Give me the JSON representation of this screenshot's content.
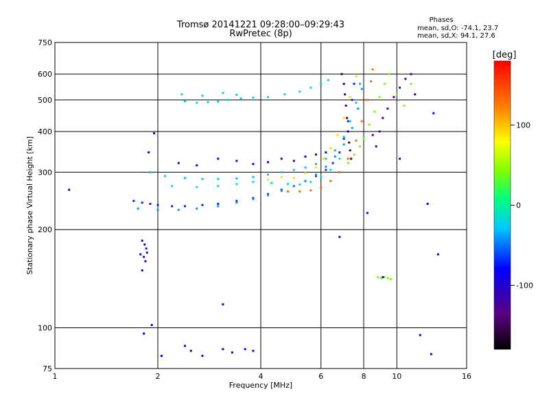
{
  "chart_data": {
    "type": "scatter",
    "title": "Tromsø 20141221 09:28:00–09:29:43",
    "subtitle": "RwPretec (8p)",
    "xlabel": "Frequency [MHz]",
    "ylabel": "Stationary phase Virtual Height [km]",
    "x_scale": "log",
    "y_scale": "log",
    "xlim": [
      1,
      16
    ],
    "ylim": [
      75,
      750
    ],
    "x_ticks": [
      1,
      2,
      4,
      6,
      8,
      10,
      16
    ],
    "y_ticks": [
      75,
      100,
      200,
      300,
      400,
      500,
      600,
      750
    ],
    "x_tick_labels": [
      "1",
      "2",
      "4",
      "6",
      "8",
      "10",
      "16"
    ],
    "y_tick_labels": [
      "75",
      "100",
      "200",
      "300",
      "400",
      "500",
      "600",
      "750"
    ],
    "grid": true,
    "stats": {
      "header": "Phases",
      "line_o": "mean, sd,O: -74.1, 23.7",
      "line_x": "mean, sd,X:  94.1, 27.6"
    },
    "colorbar": {
      "label": "[deg]",
      "range": [
        -180,
        180
      ],
      "ticks": [
        100,
        0,
        -100
      ],
      "tick_labels": [
        "100",
        "0",
        "-100"
      ]
    },
    "series": [
      {
        "values": [
          [
            2.4,
            495
          ],
          [
            2.6,
            490
          ],
          [
            2.8,
            492
          ],
          [
            3.0,
            494
          ],
          [
            3.2,
            500
          ],
          [
            3.5,
            505
          ],
          [
            3.8,
            508
          ],
          [
            4.2,
            510
          ],
          [
            4.7,
            520
          ],
          [
            5.2,
            530
          ],
          [
            5.6,
            545
          ],
          [
            6.0,
            560
          ],
          [
            6.3,
            575
          ],
          [
            2.35,
            520
          ],
          [
            2.7,
            515
          ],
          [
            3.1,
            525
          ],
          [
            3.4,
            518
          ]
        ],
        "phase": -20
      },
      {
        "values": [
          [
            1.7,
            245
          ],
          [
            1.8,
            242
          ],
          [
            1.9,
            240
          ],
          [
            2.0,
            238
          ],
          [
            2.2,
            236
          ],
          [
            2.4,
            236
          ],
          [
            2.7,
            238
          ],
          [
            3.0,
            240
          ],
          [
            3.4,
            245
          ],
          [
            3.8,
            250
          ],
          [
            4.2,
            257
          ],
          [
            4.6,
            265
          ],
          [
            5.0,
            272
          ],
          [
            5.4,
            282
          ],
          [
            5.8,
            292
          ],
          [
            6.2,
            305
          ],
          [
            6.5,
            320
          ],
          [
            6.8,
            345
          ],
          [
            7.0,
            380
          ],
          [
            7.2,
            430
          ],
          [
            7.4,
            500
          ],
          [
            7.5,
            560
          ]
        ],
        "phase": -70
      },
      {
        "values": [
          [
            1.75,
            232
          ],
          [
            2.0,
            230
          ],
          [
            2.3,
            230
          ],
          [
            2.6,
            232
          ],
          [
            3.0,
            236
          ],
          [
            3.4,
            242
          ],
          [
            3.8,
            248
          ],
          [
            4.2,
            255
          ],
          [
            4.6,
            263
          ],
          [
            5.0,
            272
          ],
          [
            5.4,
            282
          ],
          [
            5.8,
            295
          ],
          [
            6.2,
            312
          ],
          [
            6.6,
            335
          ],
          [
            7.0,
            365
          ],
          [
            7.4,
            410
          ],
          [
            7.7,
            470
          ],
          [
            7.9,
            540
          ]
        ],
        "phase": -40
      },
      {
        "values": [
          [
            1.9,
            300
          ],
          [
            2.1,
            292
          ],
          [
            2.4,
            288
          ],
          [
            2.7,
            286
          ],
          [
            3.0,
            286
          ],
          [
            3.4,
            287
          ],
          [
            3.8,
            290
          ],
          [
            4.2,
            295
          ],
          [
            4.6,
            300
          ],
          [
            5.0,
            305
          ],
          [
            5.4,
            310
          ],
          [
            5.8,
            318
          ],
          [
            6.2,
            330
          ],
          [
            6.6,
            350
          ],
          [
            7.0,
            385
          ],
          [
            7.3,
            430
          ],
          [
            7.6,
            490
          ],
          [
            7.8,
            560
          ]
        ],
        "phase": -30
      },
      {
        "values": [
          [
            2.2,
            272
          ],
          [
            2.6,
            270
          ],
          [
            3.0,
            272
          ],
          [
            3.4,
            276
          ],
          [
            3.8,
            280
          ],
          [
            4.3,
            278
          ],
          [
            4.8,
            276
          ],
          [
            5.2,
            275
          ],
          [
            5.6,
            280
          ],
          [
            6.0,
            290
          ],
          [
            6.4,
            305
          ],
          [
            6.8,
            330
          ]
        ],
        "phase": -10
      },
      {
        "values": [
          [
            2.3,
            320
          ],
          [
            2.6,
            315
          ],
          [
            3.0,
            330
          ],
          [
            3.4,
            325
          ],
          [
            3.8,
            318
          ],
          [
            4.2,
            322
          ],
          [
            4.6,
            330
          ],
          [
            5.0,
            325
          ],
          [
            5.4,
            335
          ],
          [
            5.8,
            340
          ],
          [
            6.2,
            345
          ]
        ],
        "phase": -90
      },
      {
        "values": [
          [
            4.2,
            285
          ],
          [
            4.6,
            290
          ],
          [
            5.0,
            288
          ],
          [
            5.4,
            298
          ],
          [
            5.8,
            310
          ],
          [
            6.1,
            330
          ],
          [
            6.4,
            355
          ],
          [
            6.7,
            390
          ],
          [
            7.0,
            440
          ],
          [
            7.3,
            510
          ],
          [
            7.6,
            590
          ]
        ],
        "phase": 90
      },
      {
        "values": [
          [
            4.8,
            262
          ],
          [
            5.2,
            262
          ],
          [
            5.6,
            264
          ],
          [
            6.0,
            270
          ],
          [
            6.4,
            282
          ],
          [
            6.8,
            300
          ],
          [
            7.2,
            330
          ],
          [
            7.6,
            375
          ],
          [
            7.9,
            430
          ],
          [
            8.2,
            500
          ],
          [
            8.4,
            570
          ],
          [
            8.5,
            620
          ]
        ],
        "phase": 130
      },
      {
        "values": [
          [
            7.2,
            320
          ],
          [
            7.5,
            340
          ],
          [
            7.8,
            360
          ],
          [
            8.0,
            380
          ],
          [
            8.3,
            420
          ],
          [
            8.6,
            460
          ],
          [
            8.9,
            510
          ],
          [
            9.2,
            560
          ],
          [
            9.5,
            600
          ],
          [
            10.0,
            520
          ],
          [
            10.5,
            480
          ],
          [
            11.0,
            560
          ]
        ],
        "phase": 40
      },
      {
        "values": [
          [
            6.9,
            600
          ],
          [
            7.0,
            560
          ],
          [
            7.05,
            520
          ],
          [
            7.1,
            480
          ],
          [
            7.15,
            440
          ],
          [
            7.2,
            400
          ],
          [
            7.25,
            370
          ],
          [
            7.3,
            350
          ],
          [
            7.35,
            330
          ]
        ],
        "phase": -150
      },
      {
        "values": [
          [
            8.5,
            390
          ],
          [
            8.7,
            360
          ],
          [
            8.9,
            400
          ],
          [
            9.1,
            440
          ],
          [
            9.4,
            470
          ],
          [
            9.8,
            510
          ],
          [
            10.2,
            545
          ],
          [
            10.6,
            580
          ],
          [
            11.0,
            600
          ],
          [
            11.3,
            520
          ]
        ],
        "phase": -120
      },
      {
        "values": [
          [
            1.8,
            185
          ],
          [
            1.83,
            180
          ],
          [
            1.85,
            175
          ],
          [
            1.78,
            168
          ],
          [
            1.82,
            165
          ],
          [
            1.86,
            170
          ],
          [
            1.84,
            160
          ],
          [
            1.8,
            150
          ]
        ],
        "phase": -110
      },
      {
        "values": [
          [
            2.4,
            88
          ],
          [
            2.5,
            85
          ],
          [
            3.1,
            86
          ],
          [
            3.3,
            84
          ],
          [
            3.6,
            86
          ],
          [
            3.8,
            85
          ],
          [
            2.7,
            82
          ]
        ],
        "phase": -90
      },
      {
        "values": [
          [
            8.8,
            143
          ],
          [
            9.0,
            142
          ],
          [
            9.2,
            143
          ],
          [
            9.4,
            142
          ],
          [
            9.6,
            141
          ]
        ],
        "phase": 40
      },
      {
        "values": [
          [
            1.1,
            265
          ],
          [
            1.95,
            395
          ],
          [
            1.88,
            345
          ],
          [
            3.1,
            118
          ],
          [
            12.3,
            240
          ],
          [
            13.2,
            168
          ],
          [
            12.8,
            455
          ],
          [
            11.7,
            95
          ],
          [
            12.6,
            83
          ],
          [
            10.2,
            330
          ],
          [
            6.8,
            190
          ],
          [
            8.2,
            225
          ],
          [
            9.1,
            143
          ],
          [
            2.05,
            82
          ],
          [
            1.92,
            102
          ],
          [
            1.82,
            96
          ]
        ],
        "phase": -80
      }
    ]
  }
}
